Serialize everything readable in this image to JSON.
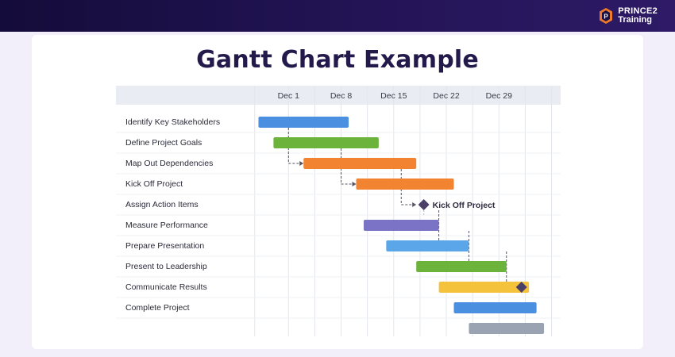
{
  "header": {
    "logo_line1": "PRINCE2",
    "logo_line2": "Training",
    "logo_icon": "prince2-logo-icon",
    "background_color": "#1c1147"
  },
  "page_title": "Gantt Chart Example",
  "chart_data": {
    "type": "gantt",
    "title": "",
    "x_axis": {
      "ticks": [
        "Dec 1",
        "Dec 8",
        "Dec 15",
        "Dec 22",
        "Dec 29"
      ],
      "range_days": [
        -5,
        36
      ]
    },
    "tasks": [
      {
        "label": "Identify Key Stakeholders",
        "start": -4,
        "end": 8,
        "color": "#4a8fe0"
      },
      {
        "label": "Define Project Goals",
        "start": -2,
        "end": 12,
        "color": "#6bb33b"
      },
      {
        "label": "Map Out Dependencies",
        "start": 2,
        "end": 17,
        "color": "#f28331"
      },
      {
        "label": "Kick Off Project",
        "start": 9,
        "end": 22,
        "color": "#f28331"
      },
      {
        "label": "Assign Action Items",
        "milestone": 18,
        "milestone_label": "Kick Off Project",
        "color": "#4a3f67"
      },
      {
        "label": "Measure Performance",
        "start": 10,
        "end": 20,
        "color": "#7b74c6"
      },
      {
        "label": "Prepare Presentation",
        "start": 13,
        "end": 24,
        "color": "#5aa6e8"
      },
      {
        "label": "Present to Leadership",
        "start": 17,
        "end": 29,
        "color": "#6bb33b"
      },
      {
        "label": "Communicate Results",
        "start": 20,
        "end": 32,
        "milestone": 31,
        "color": "#f5c33b"
      },
      {
        "label": "Complete Project",
        "start": 22,
        "end": 33,
        "color": "#4a8fe0"
      },
      {
        "label": "",
        "start": 24,
        "end": 34,
        "color": "#9aa3b2"
      }
    ],
    "dependencies": [
      {
        "from_row": 1,
        "from_day": 0,
        "to_row": 2,
        "to_day": 2
      },
      {
        "from_row": 2,
        "from_day": 7,
        "to_row": 3,
        "to_day": 9
      },
      {
        "from_row": 3,
        "from_day": 15,
        "to_row": 4,
        "to_day": 17
      },
      {
        "from_row": 5,
        "from_day": 20,
        "to_row": 6,
        "to_day": 22
      },
      {
        "from_row": 6,
        "from_day": 24,
        "to_row": 7,
        "to_day": 27
      },
      {
        "from_row": 7,
        "from_day": 29,
        "to_row": 8,
        "to_day": 31
      }
    ],
    "grid": true,
    "colors": {
      "header_bg": "#e9ecf2",
      "grid_line": "#e3e6ec",
      "dependency_line": "#555566"
    }
  }
}
